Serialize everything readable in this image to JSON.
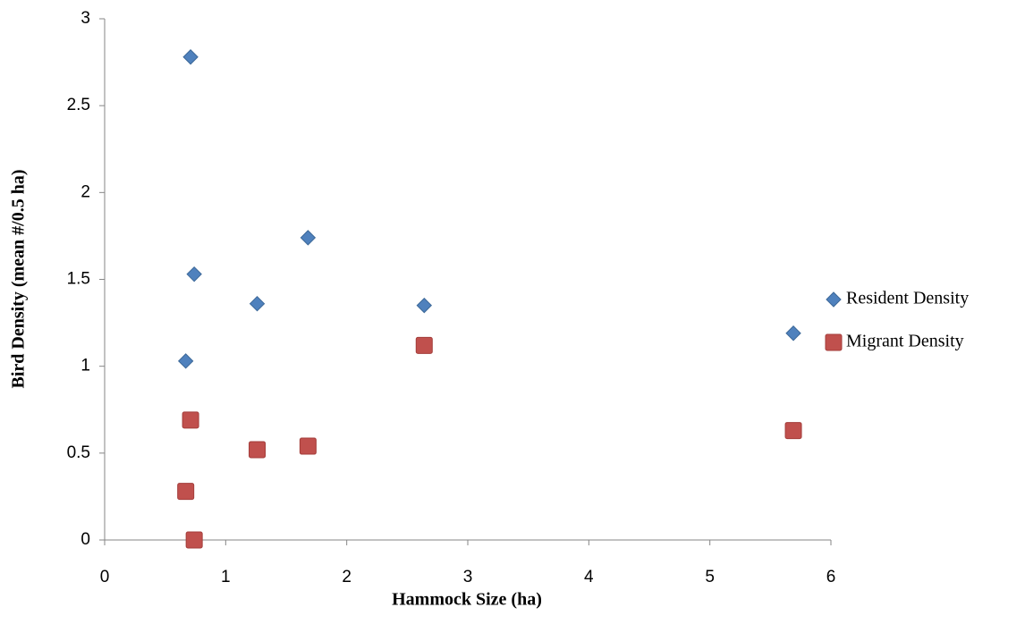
{
  "chart_data": {
    "type": "scatter",
    "x_label": "Hammock Size (ha)",
    "y_label": "Bird Density (mean #/0.5 ha)",
    "xlim": [
      0,
      6
    ],
    "xticks": [
      0,
      1,
      2,
      3,
      4,
      5,
      6
    ],
    "ylim": [
      0,
      3
    ],
    "yticks": [
      0,
      0.5,
      1,
      1.5,
      2,
      2.5,
      3
    ],
    "grid": false,
    "legend": "right",
    "series": [
      {
        "name": "Resident Density",
        "color": "#4f81bd",
        "marker": "diamond",
        "x": [
          0.71,
          0.74,
          0.67,
          1.26,
          1.68,
          2.64,
          5.69
        ],
        "values": [
          2.78,
          1.53,
          1.03,
          1.36,
          1.74,
          1.35,
          1.19
        ]
      },
      {
        "name": "Migrant Density",
        "color": "#c0504d",
        "marker": "square",
        "x": [
          0.71,
          0.74,
          0.67,
          1.26,
          1.68,
          2.64,
          5.69
        ],
        "values": [
          0.69,
          0,
          0.28,
          0.52,
          0.54,
          1.12,
          0.63
        ]
      }
    ]
  }
}
